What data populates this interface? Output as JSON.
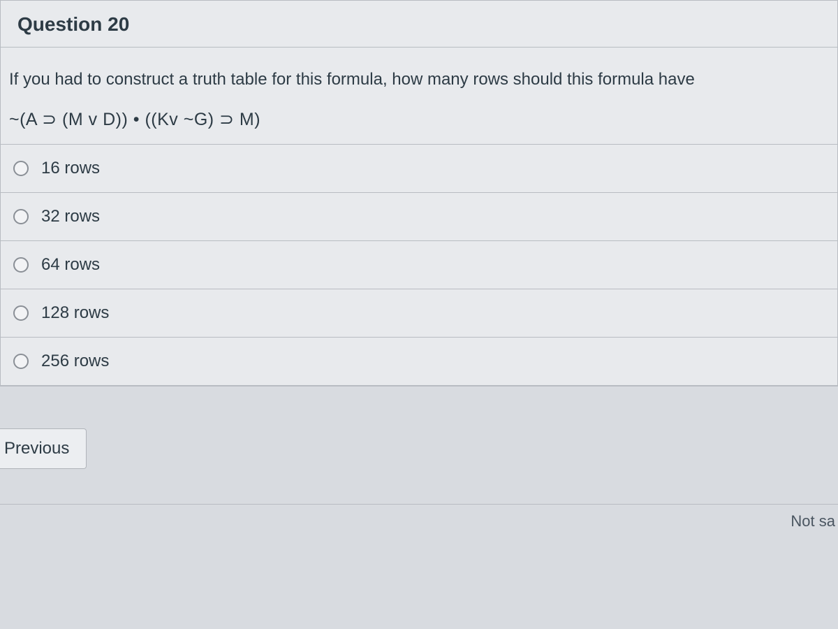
{
  "question": {
    "title": "Question 20",
    "prompt": "If you had to construct a truth table for this formula, how many rows should this formula have",
    "formula": "~(A ⊃ (M v D)) • ((Kv ~G) ⊃ M)"
  },
  "answers": [
    {
      "label": "16 rows"
    },
    {
      "label": "32 rows"
    },
    {
      "label": "64 rows"
    },
    {
      "label": "128 rows"
    },
    {
      "label": "256 rows"
    }
  ],
  "nav": {
    "previous_label": "Previous"
  },
  "status": {
    "not_saved_partial": "Not sa"
  },
  "colors": {
    "background": "#d8dbe0",
    "panel": "#e8eaed",
    "border": "#b8bcc2",
    "text": "#2d3b45",
    "radio_border": "#8a8f96"
  },
  "typography": {
    "title_fontsize": 28,
    "body_fontsize": 24,
    "formula_fontsize": 25
  }
}
